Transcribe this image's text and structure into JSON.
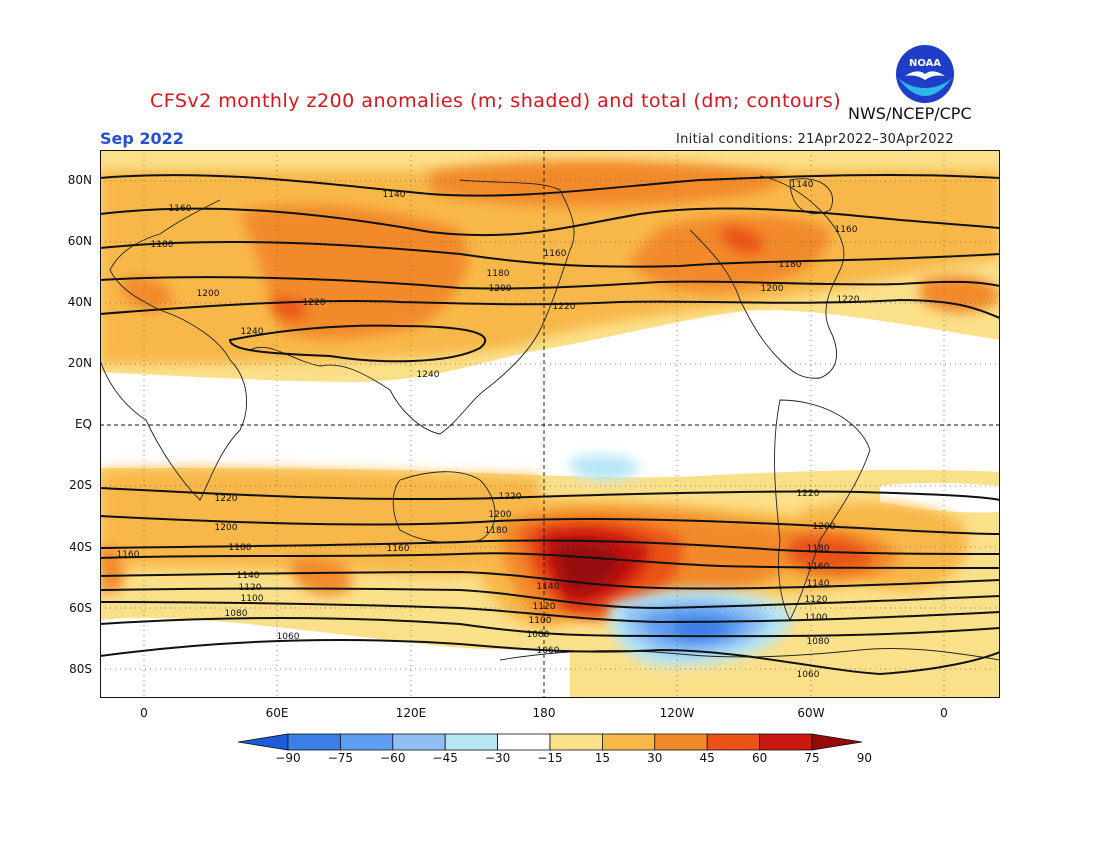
{
  "title": "CFSv2 monthly z200 anomalies (m; shaded) and total (dm; contours)",
  "agency": "NWS/NCEP/CPC",
  "month": "Sep 2022",
  "initial_conditions": "Initial conditions: 21Apr2022–30Apr2022",
  "logo": {
    "icon": "noaa-logo-icon",
    "text": "NOAA",
    "colors": {
      "outer": "#1e3ec8",
      "inner": "#2db8ea",
      "gull": "#ffffff"
    }
  },
  "lat_labels": [
    "80N",
    "60N",
    "40N",
    "20N",
    "EQ",
    "20S",
    "40S",
    "60S",
    "80S"
  ],
  "lon_labels": [
    "0",
    "60E",
    "120E",
    "180",
    "120W",
    "60W",
    "0"
  ],
  "colorbar": {
    "labels": [
      "−90",
      "−75",
      "−60",
      "−45",
      "−30",
      "−15",
      "15",
      "30",
      "45",
      "60",
      "75",
      "90"
    ],
    "colors": [
      "#1c5cd8",
      "#3a7ee8",
      "#5f9ef0",
      "#8ec0f4",
      "#b6e6f4",
      "#ffffff",
      "#fbe08a",
      "#f8b848",
      "#f28a2a",
      "#ea5218",
      "#c81810",
      "#980808"
    ]
  },
  "contour_labels": {
    "north": [
      "1140",
      "1140",
      "1160",
      "1160",
      "1160",
      "1180",
      "1180",
      "1180",
      "1200",
      "1200",
      "1200",
      "1220",
      "1220",
      "1220",
      "1240",
      "1240"
    ],
    "south": [
      "1220",
      "1220",
      "1220",
      "1200",
      "1200",
      "1200",
      "1180",
      "1180",
      "1180",
      "1160",
      "1160",
      "1160",
      "1140",
      "1140",
      "1140",
      "1120",
      "1120",
      "1120",
      "1100",
      "1100",
      "1100",
      "1080",
      "1080",
      "1080",
      "1060",
      "1060",
      "1060"
    ]
  }
}
